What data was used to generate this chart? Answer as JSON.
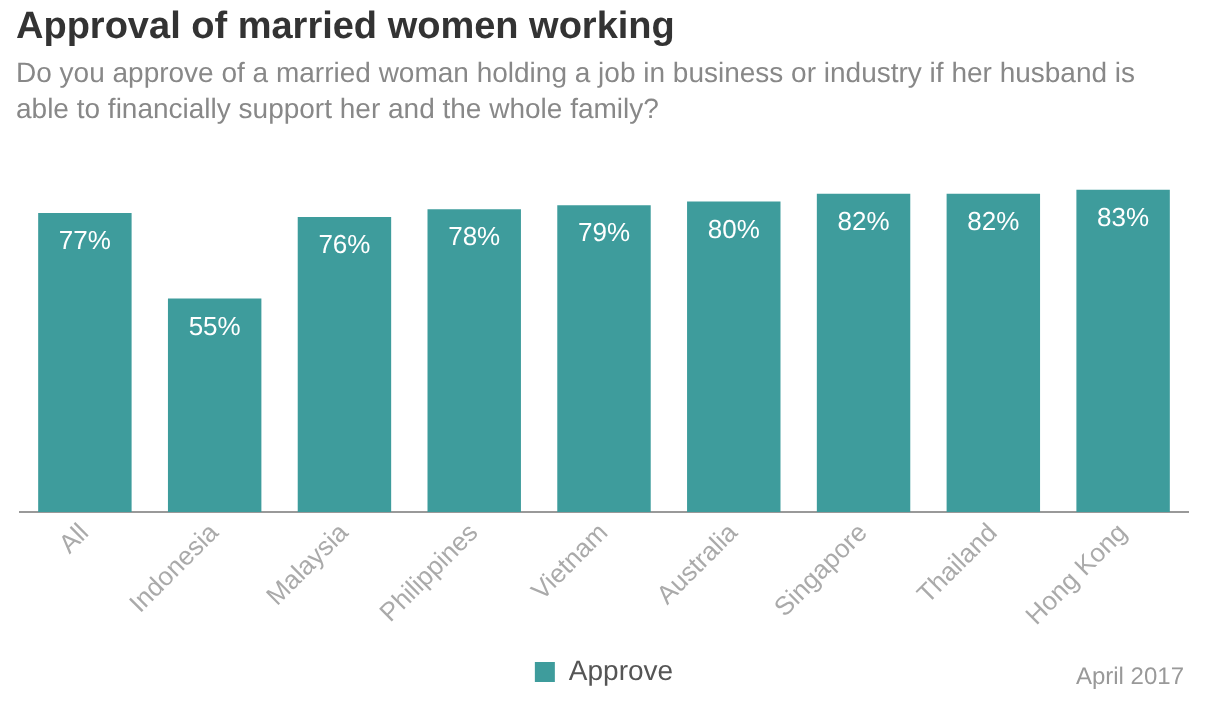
{
  "chart_data": {
    "type": "bar",
    "title": "Approval of married women working",
    "subtitle": "Do you approve of a married woman holding a job in business or industry if her husband is able to financially support her and the whole family?",
    "categories": [
      "All",
      "Indonesia",
      "Malaysia",
      "Philippines",
      "Vietnam",
      "Australia",
      "Singapore",
      "Thailand",
      "Hong Kong"
    ],
    "series": [
      {
        "name": "Approve",
        "color": "#3e9c9c",
        "values": [
          77,
          55,
          76,
          78,
          79,
          80,
          82,
          82,
          83
        ],
        "value_labels": [
          "77%",
          "55%",
          "76%",
          "78%",
          "79%",
          "80%",
          "82%",
          "82%",
          "83%"
        ]
      }
    ],
    "legend": "bottom",
    "grid": false,
    "annotations": [
      "April 2017"
    ]
  }
}
